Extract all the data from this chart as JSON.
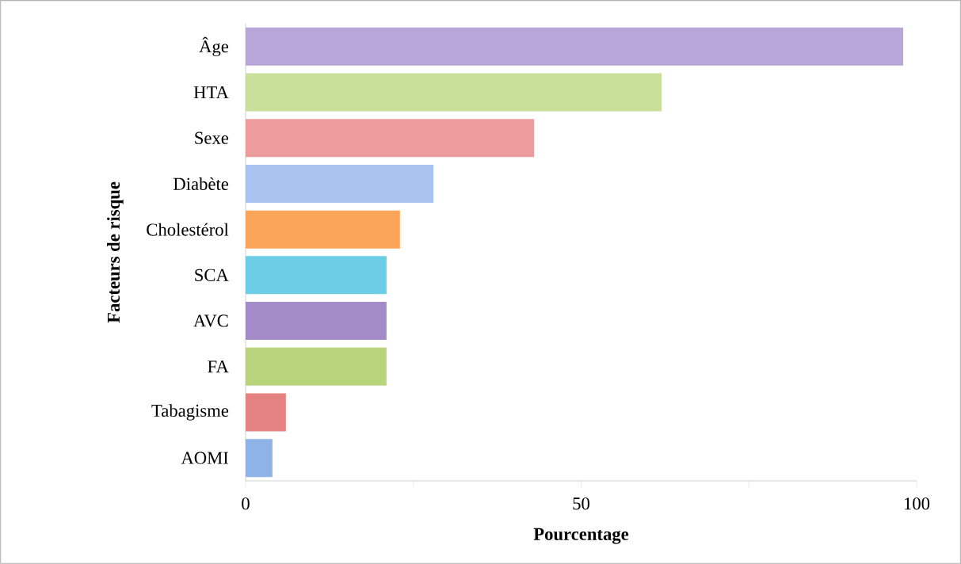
{
  "chart_data": {
    "type": "bar",
    "orientation": "horizontal",
    "xlabel": "Pourcentage",
    "ylabel": "Facteurs de risque",
    "categories": [
      "Âge",
      "HTA",
      "Sexe",
      "Diabète",
      "Cholestérol",
      "SCA",
      "AVC",
      "FA",
      "Tabagisme",
      "AOMI"
    ],
    "values": [
      98,
      62,
      43,
      28,
      23,
      21,
      21,
      21,
      6,
      4
    ],
    "colors": [
      "#b9a6d9",
      "#c8e09a",
      "#ec9c9c",
      "#a8c4ee",
      "#fba55a",
      "#6ccde6",
      "#a28bc6",
      "#b8d57e",
      "#e58383",
      "#8fb3e6"
    ],
    "xlim": [
      0,
      100
    ],
    "xticks": [
      0,
      {
        "value": 25,
        "label": null
      },
      50,
      {
        "value": 75,
        "label": null
      },
      100
    ],
    "grid": false
  }
}
